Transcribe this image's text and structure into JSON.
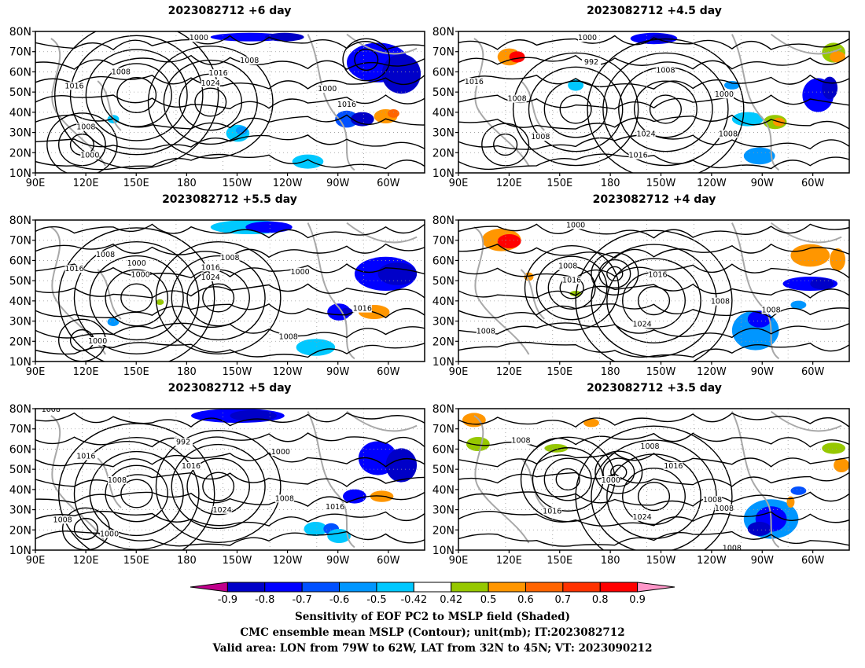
{
  "panels": [
    {
      "title": "2023082712 +6 day"
    },
    {
      "title": "2023082712 +4.5 day"
    },
    {
      "title": "2023082712 +5.5 day"
    },
    {
      "title": "2023082712 +4 day"
    },
    {
      "title": "2023082712 +5 day"
    },
    {
      "title": "2023082712 +3.5 day"
    }
  ],
  "axes": {
    "lat_labels": [
      "80N",
      "70N",
      "60N",
      "50N",
      "40N",
      "30N",
      "20N",
      "10N"
    ],
    "lon_labels": [
      "90E",
      "120E",
      "150E",
      "180",
      "150W",
      "120W",
      "90W",
      "60W"
    ]
  },
  "colorbar": {
    "ticks": [
      "-0.9",
      "-0.8",
      "-0.7",
      "-0.6",
      "-0.5",
      "-0.42",
      "0.42",
      "0.5",
      "0.6",
      "0.7",
      "0.8",
      "0.9"
    ],
    "colors": [
      "#c0008c",
      "#0000c8",
      "#0000ff",
      "#0050ff",
      "#0096ff",
      "#00c8ff",
      "#ffffff",
      "#96c800",
      "#ff9600",
      "#ff6400",
      "#ff3200",
      "#ff0000",
      "#ff96c8"
    ]
  },
  "caption": {
    "line1": "Sensitivity of EOF PC2 to MSLP field (Shaded)",
    "line2": "CMC ensemble mean MSLP (Contour); unit(mb); IT:2023082712",
    "line3": "Valid area: LON from 79W to 62W, LAT from 32N to 45N; VT: 2023090212"
  },
  "contour_labels": [
    [
      "1000",
      "1008",
      "1016",
      "1008",
      "1016",
      "1024",
      "1000",
      "1016",
      "1008",
      "1000"
    ],
    [
      "1000",
      "992",
      "1008",
      "1016",
      "1008",
      "1000",
      "1008",
      "1024",
      "1016",
      "1008"
    ],
    [
      "1008",
      "1016",
      "1000",
      "1000",
      "1008",
      "1016",
      "1024",
      "1000",
      "1016",
      "1008",
      "1000"
    ],
    [
      "1000",
      "1008",
      "1016",
      "1016",
      "1008",
      "1024",
      "1008",
      "1008"
    ],
    [
      "1008",
      "992",
      "1016",
      "1016",
      "1000",
      "1008",
      "1008",
      "1016",
      "1024",
      "1008",
      "1000"
    ],
    [
      "1008",
      "1008",
      "1016",
      "1000",
      "1016",
      "1024",
      "1008",
      "1008",
      "1008"
    ]
  ]
}
